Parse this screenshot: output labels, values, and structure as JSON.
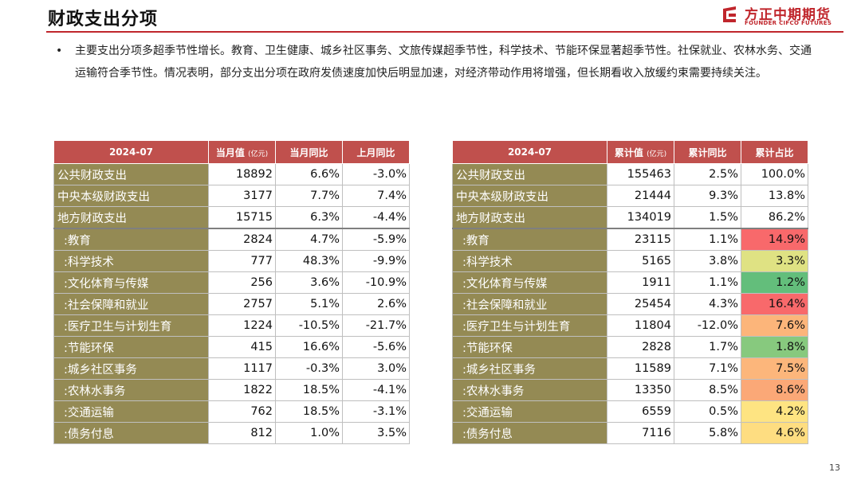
{
  "header": {
    "title": "财政支出分项",
    "logo_cn": "方正中期期货",
    "logo_en": "FOUNDER CIFCO FUTURES"
  },
  "bullet": {
    "marker": "•",
    "text": "主要支出分项多超季节性增长。教育、卫生健康、城乡社区事务、文旅传媒超季节性，科学技术、节能环保显著超季节性。社保就业、农林水务、交通运输符合季节性。情况表明，部分支出分项在政府发债速度加快后明显加速，对经济带动作用将增强，但长期看收入放缓约束需要持续关注。"
  },
  "colors": {
    "header_red": "#c0504d",
    "name_olive": "#948a54",
    "brand_red": "#c0262c"
  },
  "table_left": {
    "headers": [
      {
        "main": "2024-07",
        "unit": ""
      },
      {
        "main": "当月值",
        "unit": "(亿元)"
      },
      {
        "main": "当月同比",
        "unit": ""
      },
      {
        "main": "上月同比",
        "unit": ""
      }
    ],
    "rows": [
      {
        "name": "公共财政支出",
        "v1": "18892",
        "v2": "6.6%",
        "v3": "-3.0%"
      },
      {
        "name": "中央本级财政支出",
        "v1": "3177",
        "v2": "7.7%",
        "v3": "7.4%"
      },
      {
        "name": "地方财政支出",
        "v1": "15715",
        "v2": "6.3%",
        "v3": "-4.4%"
      },
      {
        "name": ":教育",
        "v1": "2824",
        "v2": "4.7%",
        "v3": "-5.9%"
      },
      {
        "name": ":科学技术",
        "v1": "777",
        "v2": "48.3%",
        "v3": "-9.9%"
      },
      {
        "name": ":文化体育与传媒",
        "v1": "256",
        "v2": "3.6%",
        "v3": "-10.9%"
      },
      {
        "name": ":社会保障和就业",
        "v1": "2757",
        "v2": "5.1%",
        "v3": "2.6%"
      },
      {
        "name": ":医疗卫生与计划生育",
        "v1": "1224",
        "v2": "-10.5%",
        "v3": "-21.7%"
      },
      {
        "name": ":节能环保",
        "v1": "415",
        "v2": "16.6%",
        "v3": "-5.6%"
      },
      {
        "name": ":城乡社区事务",
        "v1": "1117",
        "v2": "-0.3%",
        "v3": "3.0%"
      },
      {
        "name": ":农林水事务",
        "v1": "1822",
        "v2": "18.5%",
        "v3": "-4.1%"
      },
      {
        "name": ":交通运输",
        "v1": "762",
        "v2": "18.5%",
        "v3": "-3.1%"
      },
      {
        "name": ":债务付息",
        "v1": "812",
        "v2": "1.0%",
        "v3": "3.5%"
      }
    ]
  },
  "table_right": {
    "headers": [
      {
        "main": "2024-07",
        "unit": ""
      },
      {
        "main": "累计值",
        "unit": "(亿元)"
      },
      {
        "main": "累计同比",
        "unit": ""
      },
      {
        "main": "累计占比",
        "unit": ""
      }
    ],
    "rows": [
      {
        "name": "公共财政支出",
        "v1": "155463",
        "v2": "2.5%",
        "v3": "100.0%",
        "color": "#ffffff"
      },
      {
        "name": "中央本级财政支出",
        "v1": "21444",
        "v2": "9.3%",
        "v3": "13.8%",
        "color": "#ffffff"
      },
      {
        "name": "地方财政支出",
        "v1": "134019",
        "v2": "1.5%",
        "v3": "86.2%",
        "color": "#ffffff"
      },
      {
        "name": ":教育",
        "v1": "23115",
        "v2": "1.1%",
        "v3": "14.9%",
        "color": "#f8696b"
      },
      {
        "name": ":科学技术",
        "v1": "5165",
        "v2": "3.8%",
        "v3": "3.3%",
        "color": "#dfe283"
      },
      {
        "name": ":文化体育与传媒",
        "v1": "1911",
        "v2": "1.1%",
        "v3": "1.2%",
        "color": "#63be7b"
      },
      {
        "name": ":社会保障和就业",
        "v1": "25454",
        "v2": "4.3%",
        "v3": "16.4%",
        "color": "#f8696b"
      },
      {
        "name": ":医疗卫生与计划生育",
        "v1": "11804",
        "v2": "-12.0%",
        "v3": "7.6%",
        "color": "#fcb57a"
      },
      {
        "name": ":节能环保",
        "v1": "2828",
        "v2": "1.7%",
        "v3": "1.8%",
        "color": "#87c97e"
      },
      {
        "name": ":城乡社区事务",
        "v1": "11589",
        "v2": "7.1%",
        "v3": "7.5%",
        "color": "#fcb67b"
      },
      {
        "name": ":农林水事务",
        "v1": "13350",
        "v2": "8.5%",
        "v3": "8.6%",
        "color": "#fba877"
      },
      {
        "name": ":交通运输",
        "v1": "6559",
        "v2": "0.5%",
        "v3": "4.2%",
        "color": "#fee482"
      },
      {
        "name": ":债务付息",
        "v1": "7116",
        "v2": "5.8%",
        "v3": "4.6%",
        "color": "#fedd81"
      }
    ]
  },
  "footer": {
    "page_number": "13"
  }
}
